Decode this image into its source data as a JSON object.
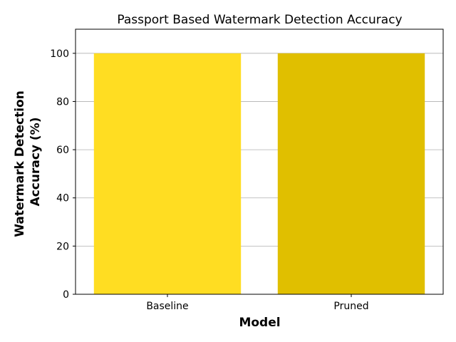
{
  "chart_data": {
    "type": "bar",
    "title": "Passport Based Watermark Detection Accuracy",
    "xlabel": "Model",
    "ylabel_lines": [
      "Watermark Detection",
      "Accuracy (%)"
    ],
    "categories": [
      "Baseline",
      "Pruned"
    ],
    "values": [
      100,
      100
    ],
    "bar_colors": [
      "#FFDD22",
      "#E0BF00"
    ],
    "ylim": [
      0,
      110
    ],
    "yticks": [
      0,
      20,
      40,
      60,
      80,
      100
    ],
    "grid": "y",
    "legend": "none"
  }
}
